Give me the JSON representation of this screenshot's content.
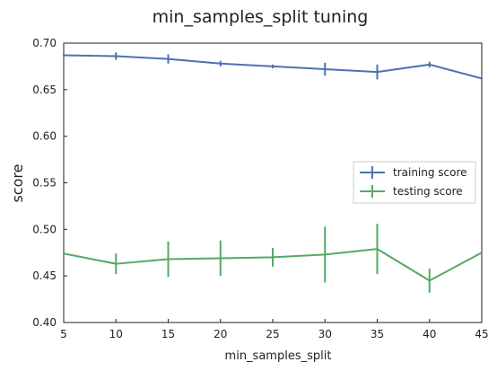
{
  "chart_data": {
    "type": "line",
    "title": "min_samples_split tuning",
    "xlabel": "min_samples_split",
    "ylabel": "score",
    "xlim": [
      5,
      45
    ],
    "ylim": [
      0.4,
      0.7
    ],
    "x_ticks": [
      "5",
      "10",
      "15",
      "20",
      "25",
      "30",
      "35",
      "40",
      "45"
    ],
    "y_ticks": [
      "0.40",
      "0.45",
      "0.50",
      "0.55",
      "0.60",
      "0.65",
      "0.70"
    ],
    "grid": false,
    "legend_position": "center-right",
    "x": [
      5,
      10,
      15,
      20,
      25,
      30,
      35,
      40,
      45
    ],
    "series": [
      {
        "name": "training score",
        "color": "#4c72b0",
        "values": [
          0.687,
          0.686,
          0.683,
          0.678,
          0.675,
          0.672,
          0.669,
          0.677,
          0.662
        ],
        "errors": [
          0.001,
          0.004,
          0.005,
          0.003,
          0.002,
          0.007,
          0.008,
          0.003,
          0.001
        ]
      },
      {
        "name": "testing score",
        "color": "#55a868",
        "values": [
          0.474,
          0.463,
          0.468,
          0.469,
          0.47,
          0.473,
          0.479,
          0.445,
          0.475
        ],
        "errors": [
          0.001,
          0.011,
          0.019,
          0.019,
          0.01,
          0.03,
          0.027,
          0.013,
          0.001
        ]
      }
    ]
  }
}
